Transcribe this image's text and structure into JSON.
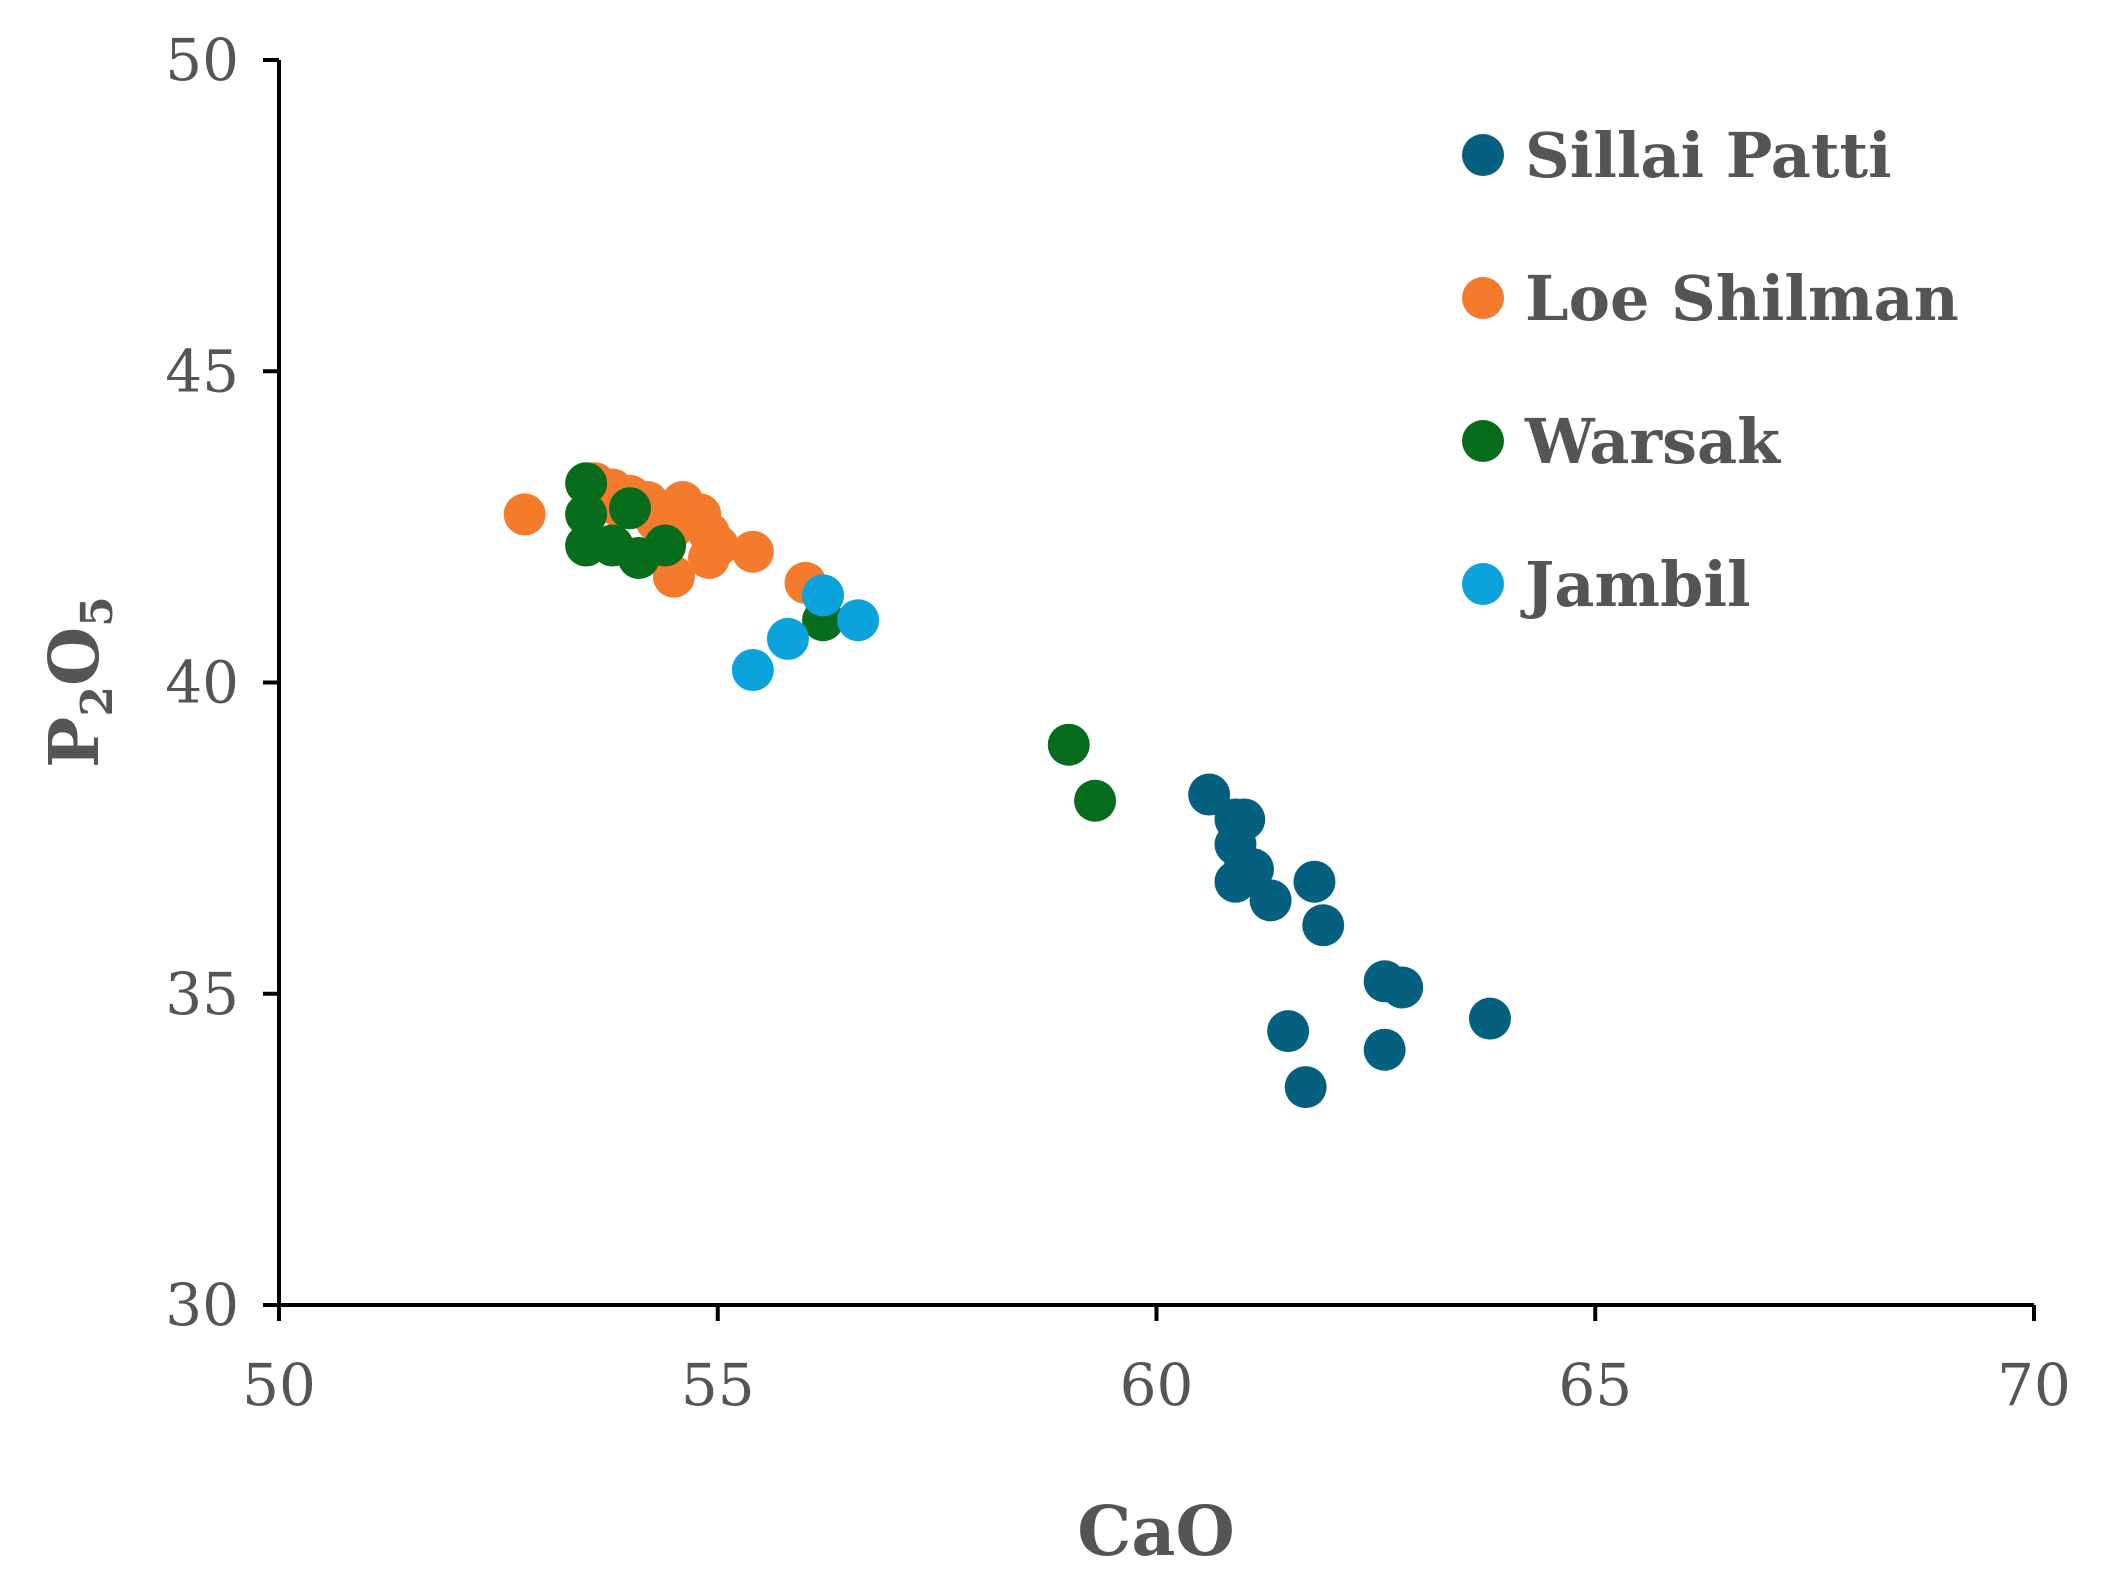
{
  "chart_data": {
    "type": "scatter",
    "title": "",
    "xlabel": "CaO",
    "ylabel_main": "P",
    "ylabel_sub1": "2",
    "ylabel_mid": "O",
    "ylabel_sub2": "5",
    "xlim": [
      50,
      70
    ],
    "ylim": [
      30,
      50
    ],
    "xticks": [
      50,
      55,
      60,
      65,
      70
    ],
    "yticks": [
      30,
      35,
      40,
      45,
      50
    ],
    "xtick_labels": [
      "50",
      "55",
      "60",
      "65",
      "70"
    ],
    "ytick_labels": [
      "30",
      "35",
      "40",
      "45",
      "50"
    ],
    "legend_position": "top-right",
    "series": [
      {
        "name": "Sillai Patti",
        "color": "#05607f",
        "points": [
          [
            60.6,
            38.2
          ],
          [
            60.9,
            37.8
          ],
          [
            61.0,
            37.8
          ],
          [
            60.9,
            37.4
          ],
          [
            61.0,
            37.0
          ],
          [
            61.1,
            37.0
          ],
          [
            60.9,
            36.8
          ],
          [
            61.3,
            36.5
          ],
          [
            61.8,
            36.8
          ],
          [
            61.9,
            36.1
          ],
          [
            62.6,
            35.2
          ],
          [
            62.8,
            35.1
          ],
          [
            63.8,
            34.6
          ],
          [
            61.5,
            34.4
          ],
          [
            62.6,
            34.1
          ],
          [
            61.7,
            33.5
          ]
        ]
      },
      {
        "name": "Loe Shilman",
        "color": "#f47a2c",
        "points": [
          [
            52.8,
            42.7
          ],
          [
            53.6,
            43.2
          ],
          [
            53.8,
            43.1
          ],
          [
            54.0,
            43.0
          ],
          [
            54.2,
            42.9
          ],
          [
            54.6,
            42.9
          ],
          [
            54.8,
            42.7
          ],
          [
            54.5,
            42.5
          ],
          [
            54.9,
            42.4
          ],
          [
            55.0,
            42.2
          ],
          [
            54.9,
            42.0
          ],
          [
            55.4,
            42.1
          ],
          [
            54.3,
            42.6
          ],
          [
            54.5,
            41.7
          ],
          [
            56.0,
            41.6
          ],
          [
            53.9,
            42.8
          ]
        ]
      },
      {
        "name": "Warsak",
        "color": "#076c1c",
        "points": [
          [
            53.5,
            43.2
          ],
          [
            53.5,
            42.7
          ],
          [
            54.0,
            42.8
          ],
          [
            53.5,
            42.2
          ],
          [
            53.8,
            42.2
          ],
          [
            54.1,
            42.0
          ],
          [
            54.4,
            42.2
          ],
          [
            56.2,
            41.0
          ],
          [
            59.0,
            39.0
          ],
          [
            59.3,
            38.1
          ]
        ]
      },
      {
        "name": "Jambil",
        "color": "#0aa3db",
        "points": [
          [
            56.2,
            41.4
          ],
          [
            56.6,
            41.0
          ],
          [
            55.8,
            40.7
          ],
          [
            55.4,
            40.2
          ]
        ]
      }
    ]
  }
}
